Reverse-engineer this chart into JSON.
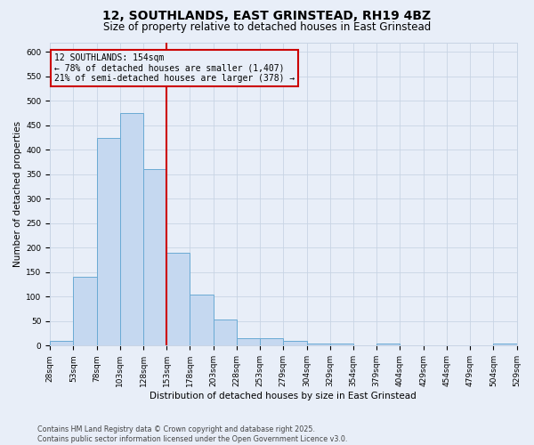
{
  "title": "12, SOUTHLANDS, EAST GRINSTEAD, RH19 4BZ",
  "subtitle": "Size of property relative to detached houses in East Grinstead",
  "xlabel": "Distribution of detached houses by size in East Grinstead",
  "ylabel": "Number of detached properties",
  "bar_values": [
    10,
    140,
    425,
    475,
    360,
    190,
    105,
    53,
    15,
    15,
    10,
    5,
    5,
    0,
    5,
    0,
    0,
    0,
    0,
    5
  ],
  "tick_labels": [
    "28sqm",
    "53sqm",
    "78sqm",
    "103sqm",
    "128sqm",
    "153sqm",
    "178sqm",
    "203sqm",
    "228sqm",
    "253sqm",
    "279sqm",
    "304sqm",
    "329sqm",
    "354sqm",
    "379sqm",
    "404sqm",
    "429sqm",
    "454sqm",
    "479sqm",
    "504sqm",
    "529sqm"
  ],
  "bar_color": "#c5d8f0",
  "bar_edgecolor": "#6aaad4",
  "vline_x": 5,
  "vline_color": "#cc0000",
  "annotation_line1": "12 SOUTHLANDS: 154sqm",
  "annotation_line2": "← 78% of detached houses are smaller (1,407)",
  "annotation_line3": "21% of semi-detached houses are larger (378) →",
  "ylim": [
    0,
    620
  ],
  "yticks": [
    0,
    50,
    100,
    150,
    200,
    250,
    300,
    350,
    400,
    450,
    500,
    550,
    600
  ],
  "grid_color": "#c8d4e4",
  "bg_color": "#e8eef8",
  "footer_line1": "Contains HM Land Registry data © Crown copyright and database right 2025.",
  "footer_line2": "Contains public sector information licensed under the Open Government Licence v3.0.",
  "title_fontsize": 10,
  "subtitle_fontsize": 8.5,
  "axis_label_fontsize": 7.5,
  "tick_fontsize": 6.5,
  "annot_fontsize": 7.0,
  "footer_fontsize": 5.8
}
